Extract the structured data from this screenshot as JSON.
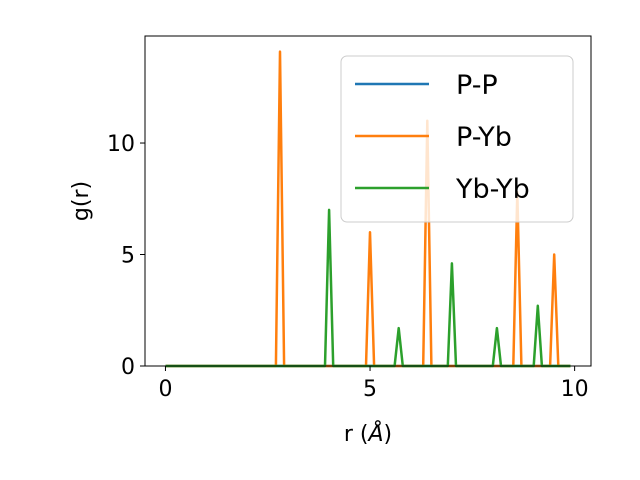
{
  "chart_data": {
    "type": "line",
    "xlabel_main": "r (",
    "xlabel_unit": "Å",
    "xlabel_end": ")",
    "ylabel": "g(r)",
    "xlim": [
      -0.5,
      10.4
    ],
    "ylim": [
      0,
      14.8
    ],
    "xticks": [
      0,
      5,
      10
    ],
    "xtick_labels": [
      "0",
      "5",
      "10"
    ],
    "yticks": [
      0,
      5,
      10
    ],
    "ytick_labels": [
      "0",
      "5",
      "10"
    ],
    "grid": false,
    "legend_position": "upper-right",
    "series": [
      {
        "name": "P-P",
        "color": "#1f77b4",
        "x": [
          0,
          9.9
        ],
        "y": [
          0,
          0
        ]
      },
      {
        "name": "P-Yb",
        "color": "#ff7f0e",
        "x": [
          0,
          2.7,
          2.8,
          2.9,
          4.9,
          5.0,
          5.1,
          6.3,
          6.4,
          6.5,
          8.5,
          8.6,
          8.7,
          9.4,
          9.5,
          9.6,
          9.9
        ],
        "y": [
          0,
          0,
          14.1,
          0,
          0,
          6.0,
          0,
          0,
          11.0,
          0,
          0,
          7.8,
          0,
          0,
          5.0,
          0,
          0
        ]
      },
      {
        "name": "Yb-Yb",
        "color": "#2ca02c",
        "x": [
          0,
          3.9,
          4.0,
          4.1,
          5.6,
          5.7,
          5.8,
          6.9,
          7.0,
          7.1,
          8.0,
          8.1,
          8.2,
          9.0,
          9.1,
          9.2,
          9.9
        ],
        "y": [
          0,
          0,
          7.0,
          0,
          0,
          1.7,
          0,
          0,
          4.6,
          0,
          0,
          1.7,
          0,
          0,
          2.7,
          0,
          0
        ]
      }
    ]
  }
}
